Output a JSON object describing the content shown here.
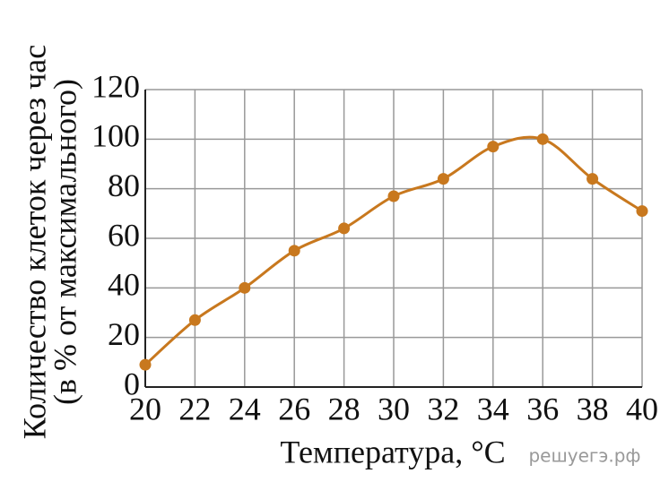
{
  "chart_data": {
    "type": "line",
    "x_label": "Температура, °C",
    "y_label": [
      "Количество клеток через час",
      "(в % от максимального)"
    ],
    "watermark": "решуегэ.рф",
    "x": [
      20,
      22,
      24,
      26,
      28,
      30,
      32,
      34,
      36,
      38,
      40
    ],
    "series": [
      {
        "color": "#c8781e",
        "values": [
          9,
          27,
          40,
          55,
          64,
          77,
          84,
          97,
          100,
          84,
          71
        ]
      }
    ],
    "xlim": [
      20,
      40
    ],
    "xticks": [
      20,
      22,
      24,
      26,
      28,
      30,
      32,
      34,
      36,
      38,
      40
    ],
    "ylim": [
      0,
      120
    ],
    "yticks": [
      0,
      20,
      40,
      60,
      80,
      100,
      120
    ],
    "grid": true,
    "smooth": true,
    "markers": true
  }
}
